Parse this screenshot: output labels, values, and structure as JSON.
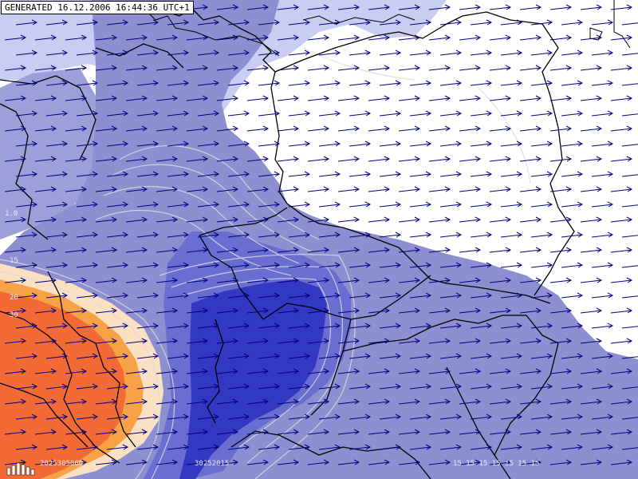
{
  "header": {
    "generated_label": "GENERATED 16.12.2006 16:44:36 UTC+1"
  },
  "map": {
    "type": "weather-map",
    "field": "wind vectors over shaded intensity bands",
    "arrow_direction": "east",
    "colors": {
      "background": "#ffffff",
      "band_light": "#c9cdf2",
      "band_medium": "#8c8fd0",
      "band_strong": "#5a5ec6",
      "band_core": "#2f35c0",
      "hot_outer": "#f9c48a",
      "hot_mid": "#f8a248",
      "hot_core": "#f26a35",
      "arrows": "#000080",
      "borders": "#000000",
      "isolines": "#dcdcdc"
    },
    "left_scale_labels": [
      "1.0",
      "15",
      "20",
      "30"
    ],
    "bottom_legend": {
      "left_block": "2025305060",
      "center_block": "30252015",
      "right_block": "15 15 15 15 15 15 15"
    }
  }
}
